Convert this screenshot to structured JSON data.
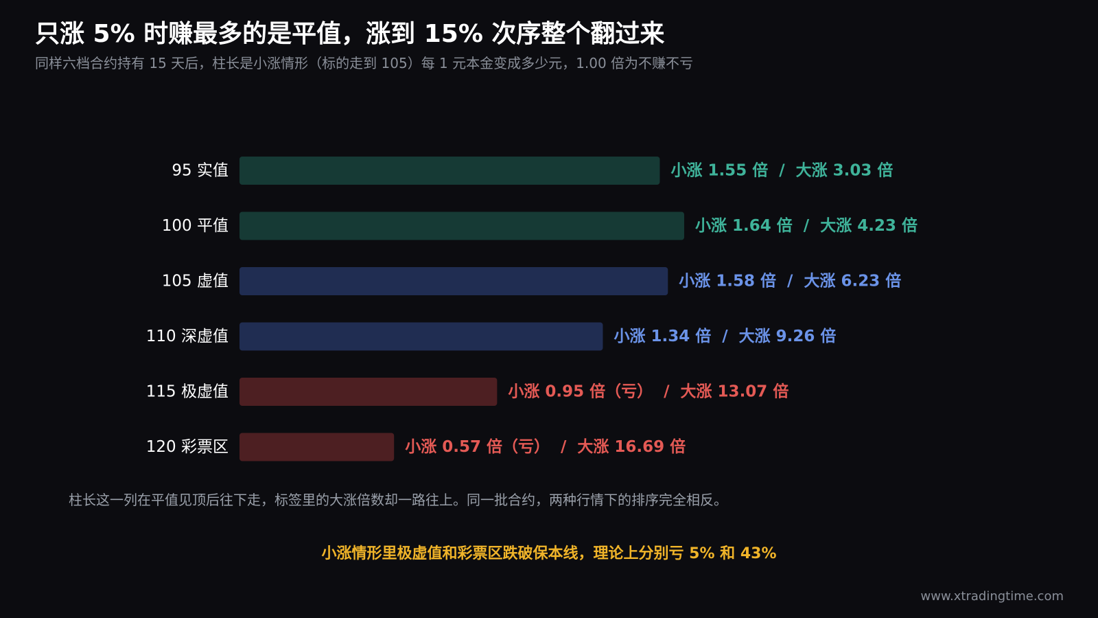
{
  "title": "只涨 5% 时赚最多的是平值，涨到 15% 次序整个翻过来",
  "subtitle": "同样六档合约持有 15 天后，柱长是小涨情形（标的走到 105）每 1 元本金变成多少元，1.00 倍为不赚不亏",
  "chart_data": {
    "type": "bar",
    "orientation": "horizontal",
    "title": "只涨 5% 时赚最多的是平值，涨到 15% 次序整个翻过来",
    "subtitle": "同样六档合约持有 15 天后，柱长是小涨情形（标的走到 105）每 1 元本金变成多少元，1.00 倍为不赚不亏",
    "xlabel": "",
    "ylabel": "",
    "xlim": [
      0,
      1.64
    ],
    "grid": false,
    "categories": [
      "95 实值",
      "100 平值",
      "105 虚值",
      "110 深虚值",
      "115 极虚值",
      "120 彩票区"
    ],
    "series": [
      {
        "values": [
          1.55,
          1.64,
          1.58,
          1.34,
          0.95,
          0.57
        ]
      },
      {
        "values": [
          3.03,
          4.23,
          6.23,
          9.26,
          13.07,
          16.69
        ]
      }
    ],
    "data_labels": [
      "小涨 1.55 倍  /  大涨 3.03 倍",
      "小涨 1.64 倍  /  大涨 4.23 倍",
      "小涨 1.58 倍  /  大涨 6.23 倍",
      "小涨 1.34 倍  /  大涨 9.26 倍",
      "小涨 0.95 倍（亏）  /  大涨 13.07 倍",
      "小涨 0.57 倍（亏）  /  大涨 16.69 倍"
    ],
    "bar_colors": [
      "#163a35",
      "#163a35",
      "#202d52",
      "#202d52",
      "#4d1f22",
      "#4d1f22"
    ],
    "label_colors": [
      "#3fb39a",
      "#3fb39a",
      "#6b93e8",
      "#6b93e8",
      "#e45a55",
      "#e45a55"
    ]
  },
  "note": "柱长这一列在平值见顶后往下走，标签里的大涨倍数却一路往上。同一批合约，两种行情下的排序完全相反。",
  "highlight": "小涨情形里极虚值和彩票区跌破保本线，理论上分别亏 5% 和 43%",
  "footer": "www.xtradingtime.com"
}
